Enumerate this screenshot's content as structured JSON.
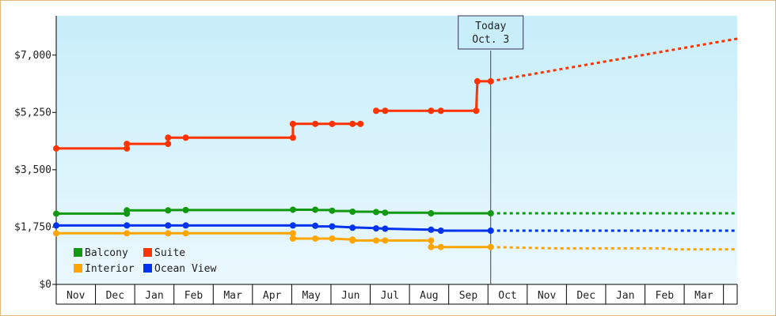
{
  "chart_data": {
    "type": "line",
    "title": "",
    "xlabel": "",
    "ylabel": "",
    "ylim": [
      0,
      8200
    ],
    "y_ticks": [
      {
        "value": 0,
        "label": "$0"
      },
      {
        "value": 1750,
        "label": "$1,750"
      },
      {
        "value": 3500,
        "label": "$3,500"
      },
      {
        "value": 5250,
        "label": "$5,250"
      },
      {
        "value": 7000,
        "label": "$7,000"
      }
    ],
    "x_range": [
      0,
      17.35
    ],
    "months": [
      "Nov",
      "Dec",
      "Jan",
      "Feb",
      "Mar",
      "Apr",
      "May",
      "Jun",
      "Jul",
      "Aug",
      "Sep",
      "Oct",
      "Nov",
      "Dec",
      "Jan",
      "Feb",
      "Mar"
    ],
    "today": {
      "x": 11.07,
      "line1": "Today",
      "line2": "Oct. 3"
    },
    "legend_placement": "bottom-left",
    "grid": false,
    "background_gradient": [
      "#c8eefa",
      "#eaf8fd"
    ],
    "series": [
      {
        "name": "Balcony",
        "color": "#119911",
        "segments": [
          [
            [
              0,
              2160
            ],
            [
              1.8,
              2160
            ],
            [
              1.8,
              2260
            ],
            [
              2.85,
              2260
            ],
            [
              2.85,
              2270
            ],
            [
              3.3,
              2270
            ],
            [
              6.03,
              2270
            ],
            [
              6.03,
              2280
            ],
            [
              6.6,
              2280
            ],
            [
              6.6,
              2270
            ],
            [
              7.03,
              2270
            ],
            [
              7.03,
              2240
            ],
            [
              7.55,
              2240
            ],
            [
              7.55,
              2220
            ],
            [
              8.15,
              2220
            ],
            [
              8.15,
              2210
            ],
            [
              8.38,
              2210
            ],
            [
              8.38,
              2190
            ],
            [
              9.55,
              2190
            ],
            [
              9.55,
              2170
            ],
            [
              11.07,
              2170
            ]
          ]
        ],
        "markers": [
          [
            0,
            2160
          ],
          [
            1.8,
            2160
          ],
          [
            1.8,
            2260
          ],
          [
            2.85,
            2260
          ],
          [
            3.3,
            2270
          ],
          [
            6.03,
            2280
          ],
          [
            6.6,
            2280
          ],
          [
            7.03,
            2250
          ],
          [
            7.55,
            2220
          ],
          [
            8.15,
            2210
          ],
          [
            8.38,
            2190
          ],
          [
            9.55,
            2170
          ],
          [
            11.07,
            2170
          ]
        ],
        "projection": [
          [
            11.07,
            2170
          ],
          [
            17.35,
            2170
          ]
        ]
      },
      {
        "name": "Suite",
        "color": "#ff3300",
        "segments": [
          [
            [
              0,
              4150
            ],
            [
              1.8,
              4150
            ],
            [
              1.8,
              4290
            ],
            [
              2.85,
              4290
            ],
            [
              2.85,
              4480
            ],
            [
              3.3,
              4480
            ],
            [
              6.03,
              4480
            ],
            [
              6.03,
              4900
            ],
            [
              6.6,
              4900
            ],
            [
              7.03,
              4900
            ],
            [
              7.55,
              4900
            ],
            [
              7.55,
              4900
            ],
            [
              7.75,
              4900
            ]
          ],
          [
            [
              8.15,
              5300
            ],
            [
              8.38,
              5300
            ],
            [
              9.55,
              5300
            ],
            [
              9.8,
              5300
            ],
            [
              10.7,
              5300
            ],
            [
              10.73,
              6200
            ],
            [
              11.07,
              6200
            ]
          ]
        ],
        "markers": [
          [
            0,
            4150
          ],
          [
            1.8,
            4150
          ],
          [
            1.8,
            4290
          ],
          [
            2.85,
            4290
          ],
          [
            2.85,
            4480
          ],
          [
            3.3,
            4480
          ],
          [
            6.03,
            4480
          ],
          [
            6.03,
            4900
          ],
          [
            6.6,
            4900
          ],
          [
            7.03,
            4900
          ],
          [
            7.55,
            4900
          ],
          [
            7.75,
            4900
          ],
          [
            8.15,
            5300
          ],
          [
            8.38,
            5300
          ],
          [
            9.55,
            5300
          ],
          [
            9.8,
            5300
          ],
          [
            10.7,
            5300
          ],
          [
            10.73,
            6200
          ],
          [
            11.07,
            6200
          ]
        ],
        "projection": [
          [
            11.07,
            6200
          ],
          [
            17.35,
            7500
          ]
        ]
      },
      {
        "name": "Interior",
        "color": "#ffa500",
        "segments": [
          [
            [
              0,
              1560
            ],
            [
              1.8,
              1560
            ],
            [
              2.85,
              1560
            ],
            [
              3.3,
              1560
            ],
            [
              6.03,
              1560
            ],
            [
              6.03,
              1400
            ],
            [
              6.6,
              1400
            ],
            [
              7.03,
              1400
            ],
            [
              7.55,
              1370
            ],
            [
              7.55,
              1340
            ],
            [
              8.15,
              1340
            ],
            [
              8.38,
              1340
            ],
            [
              9.55,
              1340
            ],
            [
              9.55,
              1140
            ],
            [
              9.8,
              1140
            ],
            [
              11.07,
              1140
            ]
          ]
        ],
        "markers": [
          [
            0,
            1560
          ],
          [
            1.8,
            1560
          ],
          [
            2.85,
            1560
          ],
          [
            3.3,
            1560
          ],
          [
            6.03,
            1560
          ],
          [
            6.03,
            1400
          ],
          [
            6.6,
            1400
          ],
          [
            7.03,
            1400
          ],
          [
            7.55,
            1340
          ],
          [
            7.55,
            1370
          ],
          [
            8.15,
            1340
          ],
          [
            8.38,
            1340
          ],
          [
            9.55,
            1340
          ],
          [
            9.55,
            1140
          ],
          [
            9.8,
            1140
          ],
          [
            11.07,
            1140
          ]
        ],
        "projection": [
          [
            11.07,
            1140
          ],
          [
            12.7,
            1100
          ],
          [
            15.5,
            1100
          ],
          [
            15.7,
            1070
          ],
          [
            17.35,
            1070
          ]
        ]
      },
      {
        "name": "Ocean View",
        "color": "#0033ee",
        "segments": [
          [
            [
              0,
              1800
            ],
            [
              1.8,
              1800
            ],
            [
              2.85,
              1800
            ],
            [
              3.3,
              1800
            ],
            [
              6.03,
              1800
            ],
            [
              6.6,
              1800
            ],
            [
              6.6,
              1770
            ],
            [
              7.03,
              1770
            ],
            [
              7.55,
              1740
            ],
            [
              8.15,
              1720
            ],
            [
              8.38,
              1700
            ],
            [
              9.55,
              1670
            ],
            [
              9.8,
              1640
            ],
            [
              11.07,
              1640
            ]
          ]
        ],
        "markers": [
          [
            0,
            1800
          ],
          [
            1.8,
            1800
          ],
          [
            2.85,
            1800
          ],
          [
            3.3,
            1800
          ],
          [
            6.03,
            1800
          ],
          [
            6.6,
            1790
          ],
          [
            7.03,
            1770
          ],
          [
            7.55,
            1730
          ],
          [
            8.15,
            1710
          ],
          [
            8.38,
            1700
          ],
          [
            9.55,
            1670
          ],
          [
            9.8,
            1640
          ],
          [
            11.07,
            1640
          ]
        ],
        "projection": [
          [
            11.07,
            1640
          ],
          [
            17.35,
            1640
          ]
        ]
      }
    ]
  }
}
